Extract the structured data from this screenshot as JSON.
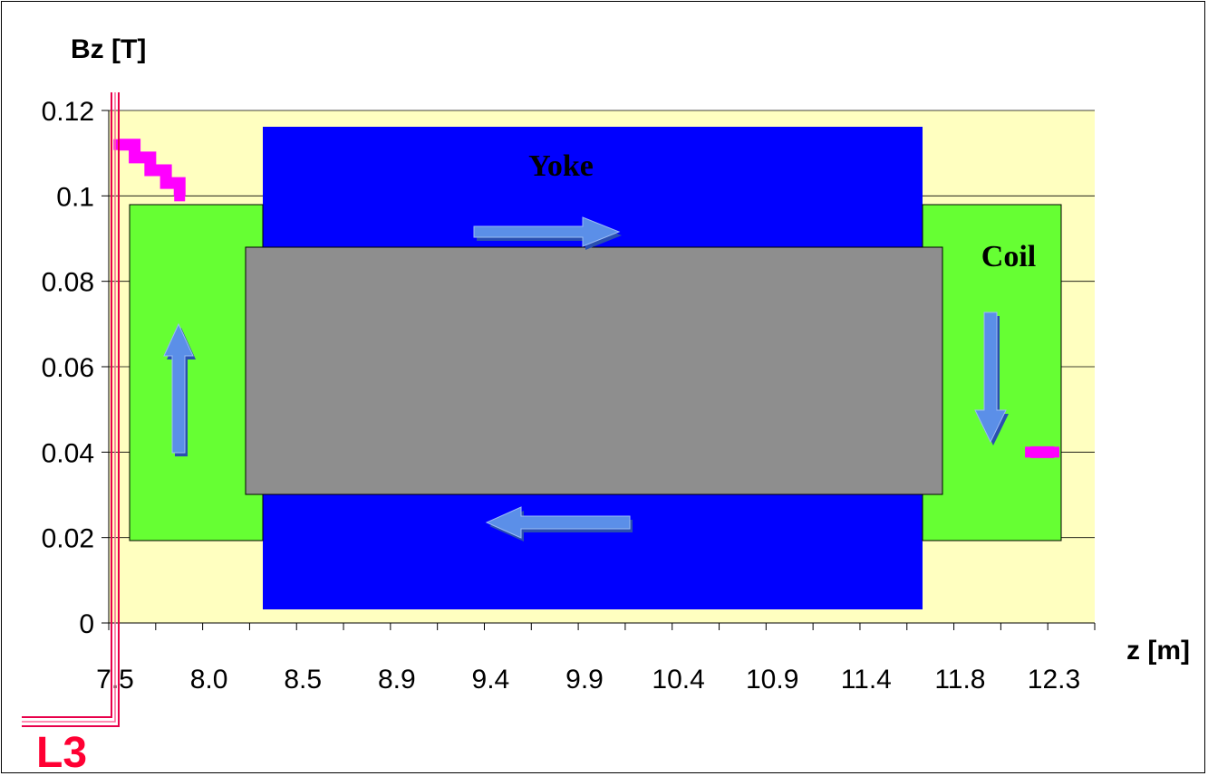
{
  "chart_data": {
    "type": "line",
    "title": "",
    "ylabel": "Bz [T]",
    "xlabel": "z [m]",
    "ylim": [
      0,
      0.12
    ],
    "xlim": [
      7.5,
      12.3
    ],
    "y_ticks": [
      "0.12",
      "0.1",
      "0.08",
      "0.06",
      "0.04",
      "0.02",
      "0"
    ],
    "y_tick_values": [
      0.12,
      0.1,
      0.08,
      0.06,
      0.04,
      0.02,
      0
    ],
    "x_ticks": [
      "7.5",
      "8.0",
      "8.5",
      "8.9",
      "9.4",
      "9.9",
      "10.4",
      "10.9",
      "11.4",
      "11.8",
      "12.3"
    ],
    "grid": "horizontal",
    "series": [
      {
        "color": "#ff00ff",
        "x": [
          7.52,
          7.6,
          7.68,
          7.76,
          7.83,
          12.18,
          12.3
        ],
        "y": [
          0.112,
          0.109,
          0.106,
          0.103,
          0.1,
          0.04,
          0.04
        ]
      }
    ],
    "annotations": {
      "yoke": "Yoke",
      "coil": "Coil",
      "detector": "L3"
    },
    "colors": {
      "plot_background": "#ffffc0",
      "yoke": "#0000ff",
      "coil": "#66ff33",
      "core": "#8e8e8e",
      "arrow": "#5b8fe8",
      "detector_label": "#ff0033",
      "detector_line": "#e8004a"
    }
  }
}
